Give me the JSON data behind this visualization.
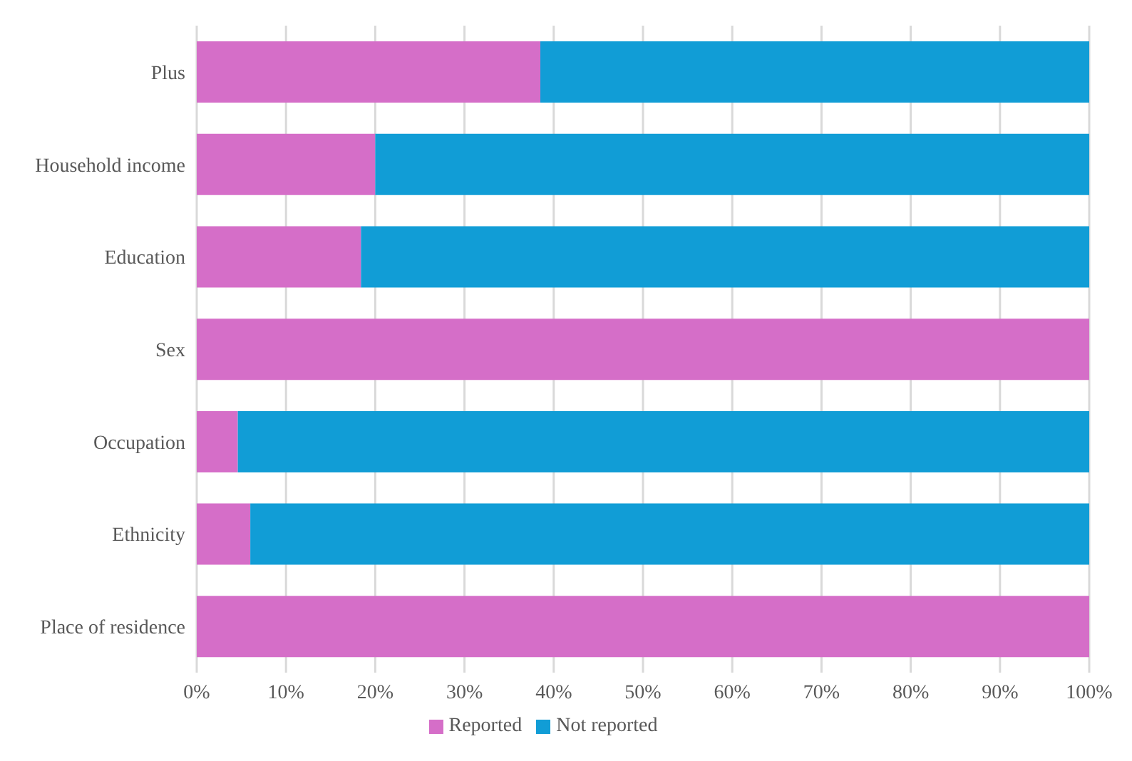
{
  "chart_data": {
    "type": "bar",
    "orientation": "horizontal",
    "stacked": true,
    "categories": [
      "Plus",
      "Household income",
      "Education",
      "Sex",
      "Occupation",
      "Ethnicity",
      "Place of residence"
    ],
    "series": [
      {
        "name": "Reported",
        "color": "#d56ec8",
        "values": [
          38.5,
          20,
          18.4,
          100,
          4.6,
          6,
          100
        ]
      },
      {
        "name": "Not reported",
        "color": "#119dd6",
        "values": [
          61.5,
          80,
          81.6,
          0,
          95.4,
          94,
          0
        ]
      }
    ],
    "xlim": [
      0,
      100
    ],
    "xticks": [
      {
        "value": 0,
        "label": "0%"
      },
      {
        "value": 10,
        "label": "10%"
      },
      {
        "value": 20,
        "label": "20%"
      },
      {
        "value": 30,
        "label": "30%"
      },
      {
        "value": 40,
        "label": "40%"
      },
      {
        "value": 50,
        "label": "50%"
      },
      {
        "value": 60,
        "label": "60%"
      },
      {
        "value": 70,
        "label": "70%"
      },
      {
        "value": 80,
        "label": "80%"
      },
      {
        "value": 90,
        "label": "90%"
      },
      {
        "value": 100,
        "label": "100%"
      }
    ],
    "grid": "x",
    "legend": "bottom"
  }
}
